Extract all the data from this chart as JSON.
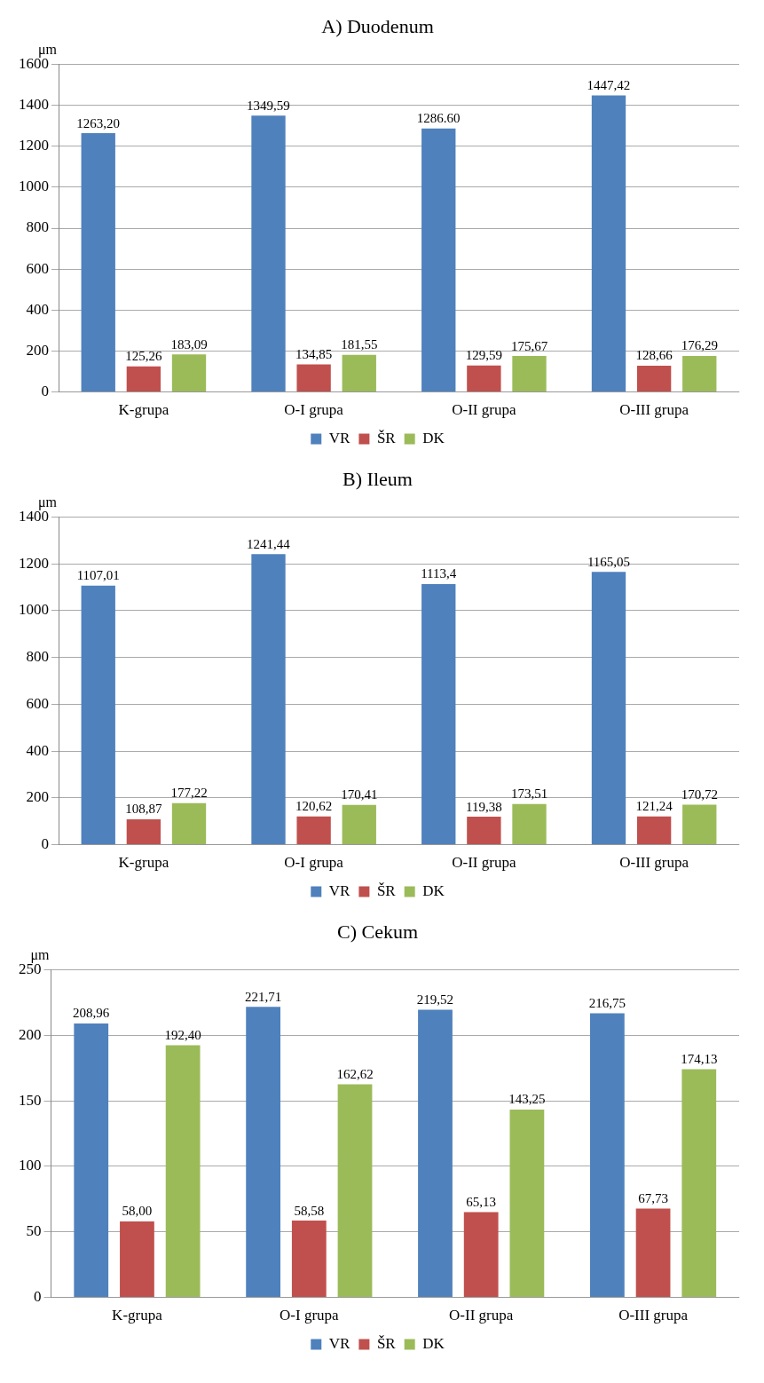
{
  "chart_data": [
    {
      "type": "bar",
      "title": "A) Duodenum",
      "ylabel": "μm",
      "categories": [
        "K-grupa",
        "O-I grupa",
        "O-II grupa",
        "O-III grupa"
      ],
      "ylim": [
        0,
        1600
      ],
      "yticks": [
        0,
        200,
        400,
        600,
        800,
        1000,
        1200,
        1400,
        1600
      ],
      "grid": "y",
      "legend": "bottom",
      "series": [
        {
          "name": "VR",
          "color": "#4f81bd",
          "values": [
            1263.2,
            1349.59,
            1286.6,
            1447.42
          ],
          "value_labels": [
            "1263,20",
            "1349,59",
            "1286.60",
            "1447,42"
          ]
        },
        {
          "name": "ŠR",
          "color": "#c0504d",
          "values": [
            125.26,
            134.85,
            129.59,
            128.66
          ],
          "value_labels": [
            "125,26",
            "134,85",
            "129,59",
            "128,66"
          ]
        },
        {
          "name": "DK",
          "color": "#9bbb59",
          "values": [
            183.09,
            181.55,
            175.67,
            176.29
          ],
          "value_labels": [
            "183,09",
            "181,55",
            "175,67",
            "176,29"
          ]
        }
      ]
    },
    {
      "type": "bar",
      "title": "B) Ileum",
      "ylabel": "μm",
      "categories": [
        "K-grupa",
        "O-I grupa",
        "O-II grupa",
        "O-III grupa"
      ],
      "ylim": [
        0,
        1400
      ],
      "yticks": [
        0,
        200,
        400,
        600,
        800,
        1000,
        1200,
        1400
      ],
      "grid": "y",
      "legend": "bottom",
      "series": [
        {
          "name": "VR",
          "color": "#4f81bd",
          "values": [
            1107.01,
            1241.44,
            1113.4,
            1165.05
          ],
          "value_labels": [
            "1107,01",
            "1241,44",
            "1113,4",
            "1165,05"
          ]
        },
        {
          "name": "ŠR",
          "color": "#c0504d",
          "values": [
            108.87,
            120.62,
            119.38,
            121.24
          ],
          "value_labels": [
            "108,87",
            "120,62",
            "119,38",
            "121,24"
          ]
        },
        {
          "name": "DK",
          "color": "#9bbb59",
          "values": [
            177.22,
            170.41,
            173.51,
            170.72
          ],
          "value_labels": [
            "177,22",
            "170,41",
            "173,51",
            "170,72"
          ]
        }
      ]
    },
    {
      "type": "bar",
      "title": "C) Cekum",
      "ylabel": "μm",
      "categories": [
        "K-grupa",
        "O-I grupa",
        "O-II grupa",
        "O-III grupa"
      ],
      "ylim": [
        0,
        250
      ],
      "yticks": [
        0,
        50,
        100,
        150,
        200,
        250
      ],
      "grid": "y",
      "legend": "bottom",
      "series": [
        {
          "name": "VR",
          "color": "#4f81bd",
          "values": [
            208.96,
            221.71,
            219.52,
            216.75
          ],
          "value_labels": [
            "208,96",
            "221,71",
            "219,52",
            "216,75"
          ]
        },
        {
          "name": "ŠR",
          "color": "#c0504d",
          "values": [
            58.0,
            58.58,
            65.13,
            67.73
          ],
          "value_labels": [
            "58,00",
            "58,58",
            "65,13",
            "67,73"
          ]
        },
        {
          "name": "DK",
          "color": "#9bbb59",
          "values": [
            192.4,
            162.62,
            143.25,
            174.13
          ],
          "value_labels": [
            "192,40",
            "162,62",
            "143,25",
            "174,13"
          ]
        }
      ]
    }
  ]
}
